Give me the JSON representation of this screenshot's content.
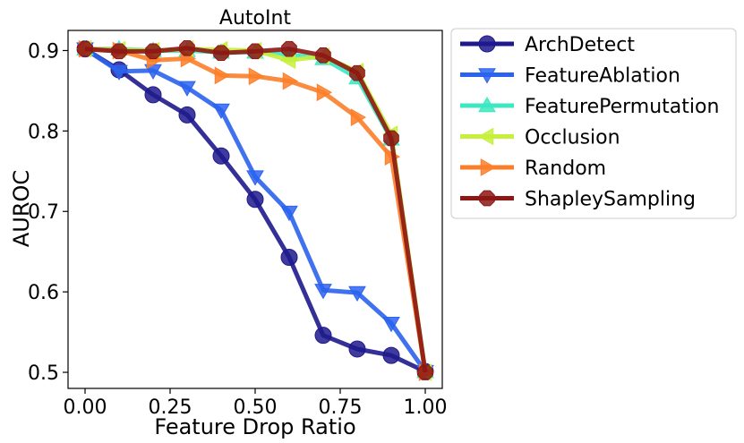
{
  "chart_data": {
    "type": "line",
    "title": "AutoInt",
    "xlabel": "Feature Drop Ratio",
    "ylabel": "AUROC",
    "xlim": [
      -0.05,
      1.05
    ],
    "ylim": [
      0.48,
      0.925
    ],
    "x": [
      0.0,
      0.1,
      0.2,
      0.3,
      0.4,
      0.5,
      0.6,
      0.7,
      0.8,
      0.9,
      1.0
    ],
    "xticks": [
      0.0,
      0.25,
      0.5,
      0.75,
      1.0
    ],
    "xtick_labels": [
      "0.00",
      "0.25",
      "0.50",
      "0.75",
      "1.00"
    ],
    "yticks": [
      0.5,
      0.6,
      0.7,
      0.8,
      0.9
    ],
    "ytick_labels": [
      "0.5",
      "0.6",
      "0.7",
      "0.8",
      "0.9"
    ],
    "grid": false,
    "legend_position": "outside-right-top",
    "series": [
      {
        "name": "ArchDetect",
        "color": "#1e1a8c",
        "marker": "circle",
        "values": [
          0.902,
          0.876,
          0.845,
          0.82,
          0.769,
          0.715,
          0.643,
          0.546,
          0.529,
          0.521,
          0.501
        ]
      },
      {
        "name": "FeatureAblation",
        "color": "#2b63ee",
        "marker": "triangle-down",
        "values": [
          0.902,
          0.874,
          0.875,
          0.854,
          0.826,
          0.743,
          0.699,
          0.602,
          0.599,
          0.561,
          0.501
        ]
      },
      {
        "name": "FeaturePermutation",
        "color": "#3be8c2",
        "marker": "triangle-up",
        "values": [
          0.902,
          0.902,
          0.9,
          0.9,
          0.898,
          0.898,
          0.895,
          0.89,
          0.866,
          0.79,
          0.501
        ]
      },
      {
        "name": "Occlusion",
        "color": "#c6f03c",
        "marker": "triangle-left",
        "values": [
          0.902,
          0.901,
          0.9,
          0.902,
          0.901,
          0.9,
          0.888,
          0.893,
          0.874,
          0.796,
          0.5
        ]
      },
      {
        "name": "Random",
        "color": "#fb7f2a",
        "marker": "triangle-right",
        "values": [
          0.902,
          0.9,
          0.888,
          0.89,
          0.869,
          0.868,
          0.862,
          0.848,
          0.817,
          0.768,
          0.5
        ]
      },
      {
        "name": "ShapleySampling",
        "color": "#8c1714",
        "marker": "octagon",
        "values": [
          0.902,
          0.899,
          0.899,
          0.903,
          0.897,
          0.899,
          0.902,
          0.894,
          0.872,
          0.791,
          0.5
        ]
      }
    ]
  }
}
